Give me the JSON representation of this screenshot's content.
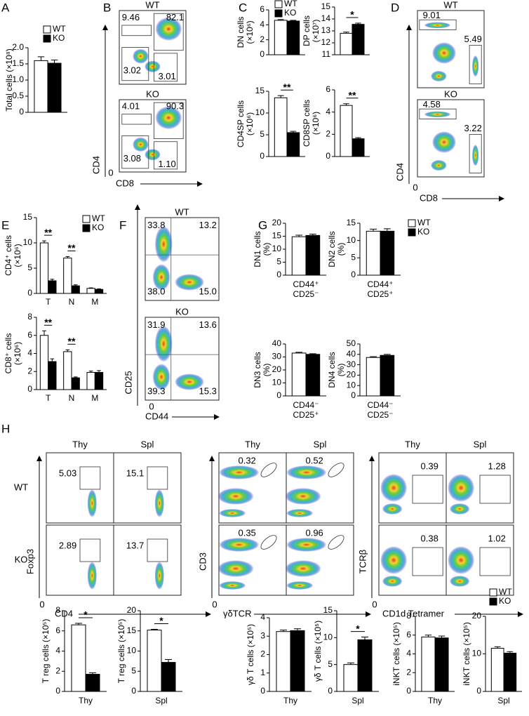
{
  "panels": [
    "A",
    "B",
    "C",
    "D",
    "E",
    "F",
    "G",
    "H"
  ],
  "chart_data": [
    {
      "type": "bar",
      "ylabel": [
        "Total cells (×10⁸)"
      ],
      "ylim": [
        0,
        2
      ],
      "yticks": [
        0,
        0.5,
        {
          "value": 1,
          "label": "1.0"
        },
        1.5,
        {
          "value": 2,
          "label": "2.0"
        }
      ],
      "series": [
        {
          "name": "WT",
          "color": "#ffffff",
          "values": [
            1.6
          ],
          "errors": [
            0.12
          ]
        },
        {
          "name": "KO",
          "color": "#000000",
          "values": [
            1.52
          ],
          "errors": [
            0.1
          ]
        }
      ],
      "legend": "top-right"
    },
    {
      "type": "flow",
      "ylabel": "CD4",
      "xlabel": "CD8",
      "origin": "0",
      "plots": [
        {
          "title": "WT",
          "values": [
            9.46,
            82.1,
            3.02,
            3.01
          ]
        },
        {
          "title": "KO",
          "values": [
            4.01,
            90.3,
            3.08,
            1.1
          ],
          "value_labels": [
            "4.01",
            "90.3",
            "3.08",
            "1.10"
          ]
        }
      ]
    },
    {
      "type": "bar",
      "ylabel": [
        "DN cells",
        "(×10⁶)"
      ],
      "ylim": [
        0,
        6
      ],
      "yticks": [
        0,
        2,
        4,
        6
      ],
      "series": [
        {
          "name": "WT",
          "color": "#ffffff",
          "values": [
            4.6
          ],
          "errors": [
            0.1
          ]
        },
        {
          "name": "KO",
          "color": "#000000",
          "values": [
            4.5
          ],
          "errors": [
            0.1
          ]
        }
      ],
      "legend": "top-right"
    },
    {
      "type": "bar",
      "ylabel": [
        "DP cells",
        "(×10⁷)"
      ],
      "ylim": [
        11,
        15
      ],
      "yticks": [
        11,
        12,
        13,
        14,
        15
      ],
      "series": [
        {
          "color": "#ffffff",
          "values": [
            12.8
          ],
          "errors": [
            0.1
          ]
        },
        {
          "color": "#000000",
          "values": [
            13.55
          ],
          "errors": [
            0.1
          ]
        }
      ],
      "significance": [
        "*"
      ]
    },
    {
      "type": "bar",
      "ylabel": [
        "CD4SP cells",
        "(×10⁶)"
      ],
      "ylim": [
        0,
        15
      ],
      "yticks": [
        0,
        5,
        10,
        15
      ],
      "series": [
        {
          "color": "#ffffff",
          "values": [
            13.5
          ],
          "errors": [
            0.5
          ]
        },
        {
          "color": "#000000",
          "values": [
            5.5
          ],
          "errors": [
            0.3
          ]
        }
      ],
      "significance": [
        "**"
      ]
    },
    {
      "type": "bar",
      "ylabel": [
        "CD8SP cells",
        "(×10⁶)"
      ],
      "ylim": [
        0,
        6
      ],
      "yticks": [
        0,
        2,
        4,
        6
      ],
      "series": [
        {
          "color": "#ffffff",
          "values": [
            4.6
          ],
          "errors": [
            0.15
          ]
        },
        {
          "color": "#000000",
          "values": [
            1.6
          ],
          "errors": [
            0.1
          ]
        }
      ],
      "significance": [
        "**"
      ]
    },
    {
      "type": "flow",
      "ylabel": "CD4",
      "xlabel": "CD8",
      "origin": "0",
      "plots": [
        {
          "title": "WT",
          "values": [
            9.01,
            5.49
          ]
        },
        {
          "title": "KO",
          "values": [
            4.58,
            3.22
          ]
        }
      ]
    },
    {
      "type": "bar",
      "ylabel": [
        "CD4⁺ cells",
        "(×10⁶)"
      ],
      "ylim": [
        0,
        15
      ],
      "yticks": [
        0,
        5,
        10,
        15
      ],
      "categories": [
        "T",
        "N",
        "M"
      ],
      "series": [
        {
          "name": "WT",
          "color": "#ffffff",
          "values": [
            10,
            7,
            1
          ],
          "errors": [
            0.4,
            0.3,
            0.1
          ]
        },
        {
          "name": "KO",
          "color": "#000000",
          "values": [
            2.5,
            1.5,
            0.8
          ],
          "errors": [
            0.3,
            0.2,
            0.1
          ]
        }
      ],
      "significance": [
        "**",
        "**",
        null
      ],
      "legend": "top-right"
    },
    {
      "type": "bar",
      "ylabel": [
        "CD8⁺ cells",
        "(×10⁶)"
      ],
      "ylim": [
        0,
        8
      ],
      "yticks": [
        0,
        2,
        4,
        6,
        8
      ],
      "categories": [
        "T",
        "N",
        "M"
      ],
      "series": [
        {
          "color": "#ffffff",
          "values": [
            6,
            4.2,
            1.9
          ],
          "errors": [
            0.5,
            0.2,
            0.15
          ]
        },
        {
          "color": "#000000",
          "values": [
            3.1,
            1.3,
            1.9
          ],
          "errors": [
            0.3,
            0.1,
            0.2
          ]
        }
      ],
      "significance": [
        "**",
        "**",
        null
      ]
    },
    {
      "type": "flow",
      "ylabel": "CD25",
      "xlabel": "CD44",
      "origin": "0",
      "plots": [
        {
          "title": "WT",
          "values": [
            33.8,
            13.2,
            38,
            15
          ],
          "value_labels": [
            "33.8",
            "13.2",
            "38.0",
            "15.0"
          ]
        },
        {
          "title": "KO",
          "values": [
            31.9,
            13.6,
            39.3,
            15.3
          ]
        }
      ]
    },
    {
      "type": "bar",
      "ylabel": [
        "DN1 cells",
        "(%)"
      ],
      "ylim": [
        0,
        20
      ],
      "yticks": [
        0,
        5,
        10,
        15,
        20
      ],
      "xlabel": [
        "CD44⁺",
        "CD25⁻"
      ],
      "series": [
        {
          "color": "#ffffff",
          "values": [
            14.8
          ],
          "errors": [
            0.6
          ]
        },
        {
          "color": "#000000",
          "values": [
            15.3
          ],
          "errors": [
            0.5
          ]
        }
      ]
    },
    {
      "type": "bar",
      "ylabel": [
        "DN2 cells",
        "(%)"
      ],
      "ylim": [
        0,
        15
      ],
      "yticks": [
        0,
        5,
        10,
        15
      ],
      "xlabel": [
        "CD44⁺",
        "CD25⁺"
      ],
      "series": [
        {
          "name": "WT",
          "color": "#ffffff",
          "values": [
            12.7
          ],
          "errors": [
            0.6
          ]
        },
        {
          "name": "KO",
          "color": "#000000",
          "values": [
            12.7
          ],
          "errors": [
            0.7
          ]
        }
      ],
      "legend": "right"
    },
    {
      "type": "bar",
      "ylabel": [
        "DN3 cells",
        "(%)"
      ],
      "ylim": [
        0,
        40
      ],
      "yticks": [
        0,
        10,
        20,
        30,
        40
      ],
      "xlabel": [
        "CD44⁻",
        "CD25⁺"
      ],
      "series": [
        {
          "color": "#ffffff",
          "values": [
            33
          ],
          "errors": [
            0.6
          ]
        },
        {
          "color": "#000000",
          "values": [
            32
          ],
          "errors": [
            0.5
          ]
        }
      ]
    },
    {
      "type": "bar",
      "ylabel": [
        "DN4 cells",
        "(%)"
      ],
      "ylim": [
        0,
        50
      ],
      "yticks": [
        0,
        10,
        20,
        30,
        40,
        50
      ],
      "xlabel": [
        "CD44⁻",
        "CD25⁻"
      ],
      "series": [
        {
          "color": "#ffffff",
          "values": [
            37
          ],
          "errors": [
            0.8
          ]
        },
        {
          "color": "#000000",
          "values": [
            39
          ],
          "errors": [
            1
          ]
        }
      ]
    },
    {
      "type": "flow",
      "rows": [
        "WT",
        "KO"
      ],
      "columns": [
        "Thy",
        "Spl"
      ],
      "ylabel": "Foxp3",
      "xlabel": "CD4",
      "origin": "0",
      "plots": [
        {
          "values": [
            5.03
          ]
        },
        {
          "values": [
            15.1
          ]
        },
        {
          "values": [
            2.89
          ]
        },
        {
          "values": [
            13.7
          ]
        }
      ]
    },
    {
      "type": "flow",
      "columns": [
        "Thy",
        "Spl"
      ],
      "ylabel": "CD3",
      "xlabel": "γδTCR",
      "origin": "0",
      "plots": [
        {
          "values": [
            0.32
          ]
        },
        {
          "values": [
            0.52
          ]
        },
        {
          "values": [
            0.35
          ]
        },
        {
          "values": [
            0.96
          ]
        }
      ]
    },
    {
      "type": "flow",
      "columns": [
        "Thy",
        "Spl"
      ],
      "ylabel": "TCRβ",
      "xlabel": "CD1d Tetramer",
      "origin": "0",
      "plots": [
        {
          "values": [
            0.39
          ]
        },
        {
          "values": [
            1.28
          ]
        },
        {
          "values": [
            0.38
          ]
        },
        {
          "values": [
            1.02
          ]
        }
      ]
    },
    {
      "type": "bar",
      "ylabel": [
        "T reg cells (×10⁵)"
      ],
      "ylim": [
        0,
        8
      ],
      "yticks": [
        0,
        2,
        4,
        6,
        8
      ],
      "xlabel": [
        "Thy"
      ],
      "series": [
        {
          "color": "#ffffff",
          "values": [
            6.6
          ],
          "errors": [
            0.15
          ]
        },
        {
          "color": "#000000",
          "values": [
            1.7
          ],
          "errors": [
            0.15
          ]
        }
      ],
      "significance": [
        "*"
      ]
    },
    {
      "type": "bar",
      "ylabel": [
        "T reg cells (×10⁵)"
      ],
      "ylim": [
        0,
        20
      ],
      "yticks": [
        0,
        5,
        10,
        15,
        20
      ],
      "xlabel": [
        "Spl"
      ],
      "series": [
        {
          "color": "#ffffff",
          "values": [
            15.2
          ],
          "errors": [
            0.2
          ]
        },
        {
          "color": "#000000",
          "values": [
            7.2
          ],
          "errors": [
            0.7
          ]
        }
      ],
      "significance": [
        "*"
      ]
    },
    {
      "type": "bar",
      "ylabel": [
        "γδ T cells (×10⁵)"
      ],
      "ylim": [
        0,
        4
      ],
      "yticks": [
        0,
        1,
        2,
        3,
        4
      ],
      "xlabel": [
        "Thy"
      ],
      "series": [
        {
          "color": "#ffffff",
          "values": [
            3.25
          ],
          "errors": [
            0.08
          ]
        },
        {
          "color": "#000000",
          "values": [
            3.3
          ],
          "errors": [
            0.1
          ]
        }
      ]
    },
    {
      "type": "bar",
      "ylabel": [
        "γδ T cells (×10⁵)"
      ],
      "ylim": [
        0,
        15
      ],
      "yticks": [
        0,
        5,
        10,
        15
      ],
      "xlabel": [
        "Spl"
      ],
      "series": [
        {
          "color": "#ffffff",
          "values": [
            5
          ],
          "errors": [
            0.3
          ]
        },
        {
          "color": "#000000",
          "values": [
            9.6
          ],
          "errors": [
            0.5
          ]
        }
      ],
      "significance": [
        "*"
      ]
    },
    {
      "type": "bar",
      "ylabel": [
        "iNKT cells (×10⁵)"
      ],
      "ylim": [
        0,
        8
      ],
      "yticks": [
        0,
        2,
        4,
        6,
        8
      ],
      "xlabel": [
        "Thy"
      ],
      "series": [
        {
          "color": "#ffffff",
          "values": [
            5.8
          ],
          "errors": [
            0.2
          ]
        },
        {
          "color": "#000000",
          "values": [
            5.7
          ],
          "errors": [
            0.2
          ]
        }
      ]
    },
    {
      "type": "bar",
      "ylabel": [
        "iNKT cells (×10⁵)"
      ],
      "ylim": [
        0,
        20
      ],
      "yticks": [
        0,
        10,
        20
      ],
      "xlabel": [
        "Spl"
      ],
      "series": [
        {
          "name": "WT",
          "color": "#ffffff",
          "values": [
            11.5
          ],
          "errors": [
            0.4
          ]
        },
        {
          "name": "KO",
          "color": "#000000",
          "values": [
            10.2
          ],
          "errors": [
            0.4
          ]
        }
      ],
      "legend": "top-right"
    }
  ]
}
